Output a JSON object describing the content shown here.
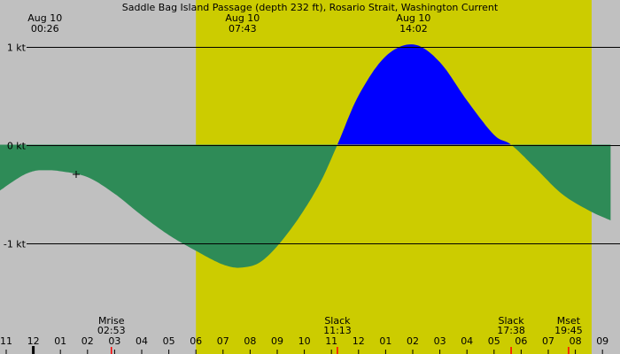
{
  "chart_data": {
    "type": "area",
    "title": "Saddle Bag Island Passage (depth 232 ft), Rosario Strait, Washington Current",
    "xlabel": "",
    "ylabel": "",
    "y_ticks": [
      {
        "value": 1,
        "label": "1 kt"
      },
      {
        "value": 0,
        "label": "0 kt"
      },
      {
        "value": -1,
        "label": "-1 kt"
      }
    ],
    "ylim": [
      -1.65,
      1.0
    ],
    "xlim": [
      10.75,
      33.3
    ],
    "x_ticks": [
      {
        "hour": 11,
        "label": "11"
      },
      {
        "hour": 12,
        "label": "12"
      },
      {
        "hour": 13,
        "label": "01"
      },
      {
        "hour": 14,
        "label": "02"
      },
      {
        "hour": 15,
        "label": "03"
      },
      {
        "hour": 16,
        "label": "04"
      },
      {
        "hour": 17,
        "label": "05"
      },
      {
        "hour": 18,
        "label": "06"
      },
      {
        "hour": 19,
        "label": "07"
      },
      {
        "hour": 20,
        "label": "08"
      },
      {
        "hour": 21,
        "label": "09"
      },
      {
        "hour": 22,
        "label": "10"
      },
      {
        "hour": 23,
        "label": "11"
      },
      {
        "hour": 24,
        "label": "12"
      },
      {
        "hour": 25,
        "label": "01"
      },
      {
        "hour": 26,
        "label": "02"
      },
      {
        "hour": 27,
        "label": "03"
      },
      {
        "hour": 28,
        "label": "04"
      },
      {
        "hour": 29,
        "label": "05"
      },
      {
        "hour": 30,
        "label": "06"
      },
      {
        "hour": 31,
        "label": "07"
      },
      {
        "hour": 32,
        "label": "08"
      },
      {
        "hour": 33,
        "label": "09"
      }
    ],
    "daylight": {
      "start_hour": 18.0,
      "end_hour": 32.6
    },
    "top_labels": [
      {
        "hour": 12.43,
        "line1": "Aug 10",
        "line2": "00:26"
      },
      {
        "hour": 19.72,
        "line1": "Aug 10",
        "line2": "07:43"
      },
      {
        "hour": 26.03,
        "line1": "Aug 10",
        "line2": "14:02"
      }
    ],
    "bottom_labels": [
      {
        "hour": 14.88,
        "line1": "Mrise",
        "line2": "02:53"
      },
      {
        "hour": 23.22,
        "line1": "Slack",
        "line2": "11:13"
      },
      {
        "hour": 29.63,
        "line1": "Slack",
        "line2": "17:38"
      },
      {
        "hour": 31.75,
        "line1": "Mset",
        "line2": "19:45"
      }
    ],
    "series": [
      {
        "x": [
          10.75,
          11.5,
          12.0,
          12.43,
          13.0,
          14.0,
          15.0,
          16.0,
          17.0,
          18.0,
          19.0,
          19.72,
          20.5,
          21.5,
          22.5,
          23.22,
          24.0,
          25.0,
          26.03,
          27.0,
          28.0,
          29.0,
          29.63,
          30.5,
          31.5,
          32.5,
          33.3
        ],
        "values": [
          -0.47,
          -0.33,
          -0.27,
          -0.26,
          -0.27,
          -0.33,
          -0.5,
          -0.72,
          -0.92,
          -1.08,
          -1.22,
          -1.25,
          -1.17,
          -0.86,
          -0.43,
          0.0,
          0.5,
          0.9,
          1.02,
          0.84,
          0.45,
          0.1,
          0.0,
          -0.23,
          -0.5,
          -0.67,
          -0.77
        ]
      }
    ],
    "colors": {
      "background": "#c0c0c0",
      "daylight": "#cccc00",
      "flood": "#0000ff",
      "ebb": "#2e8b57",
      "event_marker": "#ff0000"
    }
  }
}
